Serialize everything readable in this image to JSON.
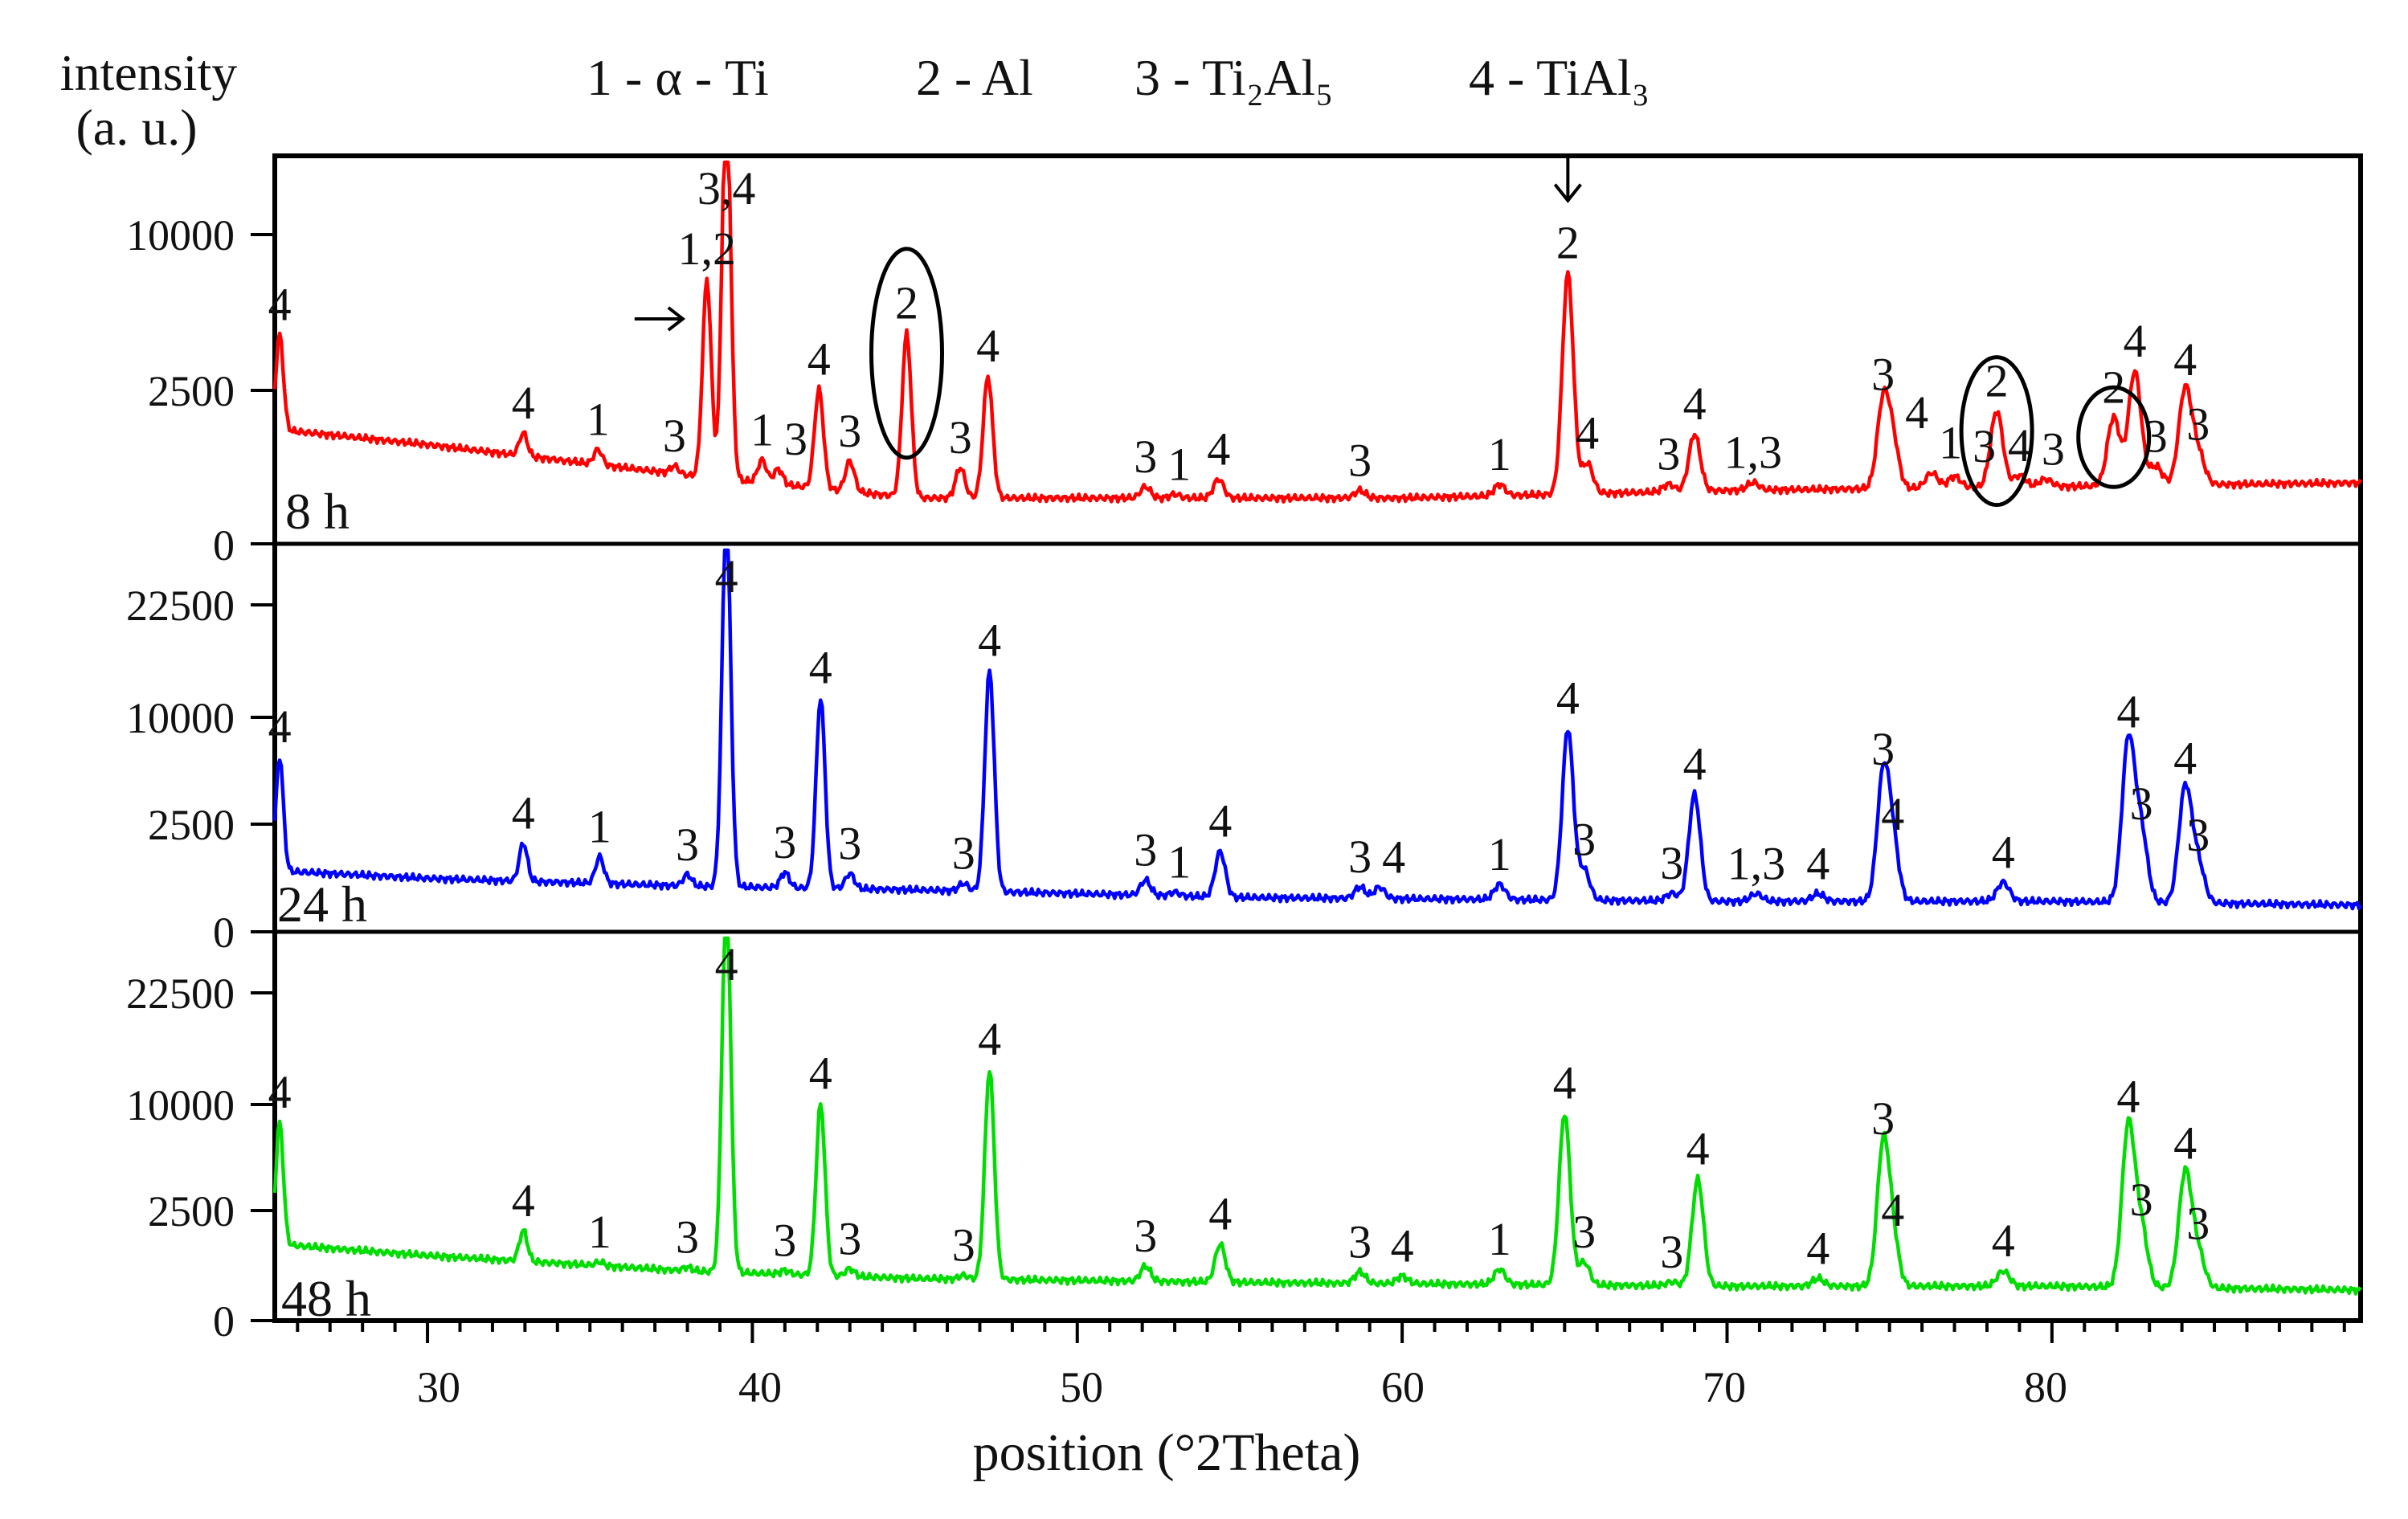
{
  "chart_data": {
    "type": "line",
    "title": "",
    "xlabel": "position (°2Theta)",
    "ylabel_line1": "intensity",
    "ylabel_line2": "(a. u.)",
    "xlim": [
      25.3,
      89.5
    ],
    "xticks": [
      30,
      40,
      50,
      60,
      70,
      80
    ],
    "legend": [
      {
        "label": "1 - α - Ti"
      },
      {
        "label": "2 - Al"
      },
      {
        "label": "3 - Ti₂Al₅"
      },
      {
        "label": "4 - TiAl₃"
      }
    ],
    "panels": [
      {
        "name": "8 h",
        "color": "#ff0000",
        "y_ticks": [
          "10000",
          "2500",
          "0"
        ],
        "y_scale": "square-root intensity",
        "background": [
          {
            "x": 25.3,
            "y": 0.3
          },
          {
            "x": 30,
            "y": 0.26
          },
          {
            "x": 36,
            "y": 0.2
          },
          {
            "x": 38,
            "y": 0.18
          },
          {
            "x": 45,
            "y": 0.12
          },
          {
            "x": 50,
            "y": 0.12
          },
          {
            "x": 60,
            "y": 0.12
          },
          {
            "x": 70,
            "y": 0.14
          },
          {
            "x": 80,
            "y": 0.15
          },
          {
            "x": 89.5,
            "y": 0.16
          }
        ],
        "peaks": [
          {
            "x": 25.45,
            "h": 0.25,
            "label": "4"
          },
          {
            "x": 32.95,
            "h": 0.06,
            "label": "4"
          },
          {
            "x": 35.25,
            "h": 0.04,
            "label": "1"
          },
          {
            "x": 37.6,
            "h": 0.02,
            "label": "3"
          },
          {
            "x": 38.6,
            "h": 0.52,
            "label": "1,2"
          },
          {
            "x": 39.2,
            "h": 1.02,
            "label": "3,4"
          },
          {
            "x": 40.3,
            "h": 0.06,
            "label": "1"
          },
          {
            "x": 40.8,
            "h": 0.04,
            "label": "3"
          },
          {
            "x": 42.05,
            "h": 0.26,
            "label": "4"
          },
          {
            "x": 43.0,
            "h": 0.08,
            "label": "3"
          },
          {
            "x": 44.75,
            "h": 0.43,
            "label": "2"
          },
          {
            "x": 46.4,
            "h": 0.08,
            "label": "3"
          },
          {
            "x": 47.25,
            "h": 0.32,
            "label": "4"
          },
          {
            "x": 52.1,
            "h": 0.03,
            "label": "3"
          },
          {
            "x": 53.0,
            "h": 0.01,
            "label": "1"
          },
          {
            "x": 54.35,
            "h": 0.05,
            "label": "4"
          },
          {
            "x": 58.7,
            "h": 0.02,
            "label": "3"
          },
          {
            "x": 63.0,
            "h": 0.03,
            "label": "1"
          },
          {
            "x": 65.1,
            "h": 0.58,
            "label": "2"
          },
          {
            "x": 65.7,
            "h": 0.08,
            "label": "4"
          },
          {
            "x": 68.2,
            "h": 0.02,
            "label": "3"
          },
          {
            "x": 69.0,
            "h": 0.15,
            "label": "4"
          },
          {
            "x": 70.8,
            "h": 0.02,
            "label": "1,3"
          },
          {
            "x": 74.8,
            "h": 0.22,
            "label": "3"
          },
          {
            "x": 75.1,
            "h": 0.12,
            "label": "4"
          },
          {
            "x": 76.3,
            "h": 0.04,
            "label": "1"
          },
          {
            "x": 77.0,
            "h": 0.03,
            "label": "3"
          },
          {
            "x": 78.3,
            "h": 0.2,
            "label": "2"
          },
          {
            "x": 79.0,
            "h": 0.03,
            "label": "4"
          },
          {
            "x": 79.8,
            "h": 0.02,
            "label": "3"
          },
          {
            "x": 81.9,
            "h": 0.18,
            "label": "2"
          },
          {
            "x": 82.55,
            "h": 0.3,
            "label": "4"
          },
          {
            "x": 83.2,
            "h": 0.05,
            "label": "3"
          },
          {
            "x": 84.1,
            "h": 0.25,
            "label": "4"
          },
          {
            "x": 84.5,
            "h": 0.08,
            "label": "3"
          }
        ]
      },
      {
        "name": "24 h",
        "color": "#0000ff",
        "y_ticks": [
          "22500",
          "10000",
          "2500",
          "0"
        ],
        "y_scale": "square-root intensity",
        "background": [
          {
            "x": 25.3,
            "y": 0.16
          },
          {
            "x": 30,
            "y": 0.14
          },
          {
            "x": 38,
            "y": 0.12
          },
          {
            "x": 45,
            "y": 0.11
          },
          {
            "x": 55,
            "y": 0.09
          },
          {
            "x": 70,
            "y": 0.08
          },
          {
            "x": 80,
            "y": 0.08
          },
          {
            "x": 89.5,
            "y": 0.07
          }
        ],
        "peaks": [
          {
            "x": 25.45,
            "h": 0.3,
            "label": "4"
          },
          {
            "x": 32.95,
            "h": 0.1,
            "label": "4"
          },
          {
            "x": 35.3,
            "h": 0.07,
            "label": "1"
          },
          {
            "x": 38.0,
            "h": 0.03,
            "label": "3"
          },
          {
            "x": 39.2,
            "h": 0.98,
            "label": "4"
          },
          {
            "x": 41.0,
            "h": 0.04,
            "label": "3"
          },
          {
            "x": 42.1,
            "h": 0.5,
            "label": "4"
          },
          {
            "x": 43.0,
            "h": 0.04,
            "label": "3"
          },
          {
            "x": 46.5,
            "h": 0.02,
            "label": "3"
          },
          {
            "x": 47.3,
            "h": 0.58,
            "label": "4"
          },
          {
            "x": 52.1,
            "h": 0.04,
            "label": "3"
          },
          {
            "x": 53.0,
            "h": 0.01,
            "label": "1"
          },
          {
            "x": 54.4,
            "h": 0.12,
            "label": "4"
          },
          {
            "x": 58.7,
            "h": 0.03,
            "label": "3"
          },
          {
            "x": 59.3,
            "h": 0.03,
            "label": "4"
          },
          {
            "x": 63.0,
            "h": 0.04,
            "label": "1"
          },
          {
            "x": 65.1,
            "h": 0.45,
            "label": "4"
          },
          {
            "x": 65.6,
            "h": 0.08,
            "label": "3"
          },
          {
            "x": 68.3,
            "h": 0.02,
            "label": "3"
          },
          {
            "x": 69.0,
            "h": 0.28,
            "label": "4"
          },
          {
            "x": 70.9,
            "h": 0.02,
            "label": "1,3"
          },
          {
            "x": 72.8,
            "h": 0.02,
            "label": "4"
          },
          {
            "x": 74.8,
            "h": 0.32,
            "label": "3"
          },
          {
            "x": 75.1,
            "h": 0.15,
            "label": "4"
          },
          {
            "x": 78.5,
            "h": 0.05,
            "label": "4"
          },
          {
            "x": 82.35,
            "h": 0.42,
            "label": "4"
          },
          {
            "x": 82.75,
            "h": 0.18,
            "label": "3"
          },
          {
            "x": 84.1,
            "h": 0.3,
            "label": "4"
          },
          {
            "x": 84.5,
            "h": 0.1,
            "label": "3"
          }
        ]
      },
      {
        "name": "48 h",
        "color": "#00dd00",
        "y_ticks": [
          "22500",
          "10000",
          "2500",
          "0"
        ],
        "y_scale": "square-root intensity",
        "background": [
          {
            "x": 25.3,
            "y": 0.2
          },
          {
            "x": 30,
            "y": 0.17
          },
          {
            "x": 38,
            "y": 0.13
          },
          {
            "x": 45,
            "y": 0.11
          },
          {
            "x": 55,
            "y": 0.1
          },
          {
            "x": 70,
            "y": 0.09
          },
          {
            "x": 80,
            "y": 0.09
          },
          {
            "x": 89.5,
            "y": 0.08
          }
        ],
        "peaks": [
          {
            "x": 25.45,
            "h": 0.32,
            "label": "4"
          },
          {
            "x": 32.95,
            "h": 0.08,
            "label": "4"
          },
          {
            "x": 35.3,
            "h": 0.01,
            "label": "1"
          },
          {
            "x": 38.0,
            "h": 0.01,
            "label": "3"
          },
          {
            "x": 39.2,
            "h": 1.0,
            "label": "4"
          },
          {
            "x": 41.0,
            "h": 0.01,
            "label": "3"
          },
          {
            "x": 42.1,
            "h": 0.45,
            "label": "4"
          },
          {
            "x": 43.0,
            "h": 0.02,
            "label": "3"
          },
          {
            "x": 46.5,
            "h": 0.01,
            "label": "3"
          },
          {
            "x": 47.3,
            "h": 0.55,
            "label": "4"
          },
          {
            "x": 52.1,
            "h": 0.04,
            "label": "3"
          },
          {
            "x": 54.4,
            "h": 0.1,
            "label": "4"
          },
          {
            "x": 58.7,
            "h": 0.03,
            "label": "3"
          },
          {
            "x": 60.0,
            "h": 0.02,
            "label": "4"
          },
          {
            "x": 63.0,
            "h": 0.04,
            "label": "1"
          },
          {
            "x": 65.0,
            "h": 0.45,
            "label": "4"
          },
          {
            "x": 65.6,
            "h": 0.06,
            "label": "3"
          },
          {
            "x": 68.3,
            "h": 0.01,
            "label": "3"
          },
          {
            "x": 69.1,
            "h": 0.28,
            "label": "4"
          },
          {
            "x": 72.8,
            "h": 0.02,
            "label": "4"
          },
          {
            "x": 74.8,
            "h": 0.36,
            "label": "3"
          },
          {
            "x": 75.1,
            "h": 0.12,
            "label": "4"
          },
          {
            "x": 78.5,
            "h": 0.04,
            "label": "4"
          },
          {
            "x": 82.35,
            "h": 0.42,
            "label": "4"
          },
          {
            "x": 82.75,
            "h": 0.15,
            "label": "3"
          },
          {
            "x": 84.1,
            "h": 0.3,
            "label": "4"
          },
          {
            "x": 84.5,
            "h": 0.09,
            "label": "3"
          }
        ]
      }
    ],
    "annotations": [
      {
        "type": "ellipse",
        "panel": "8 h",
        "x": 44.75,
        "note": "Al peak circled"
      },
      {
        "type": "ellipse",
        "panel": "8 h",
        "x": 78.3,
        "note": "Al peak circled"
      },
      {
        "type": "ellipse",
        "panel": "8 h",
        "x": 81.9,
        "note": "Al peak circled"
      },
      {
        "type": "arrow",
        "panel": "8 h",
        "x": 38.6,
        "direction": "right"
      },
      {
        "type": "arrow",
        "panel": "8 h",
        "x": 65.1,
        "direction": "down"
      }
    ]
  }
}
